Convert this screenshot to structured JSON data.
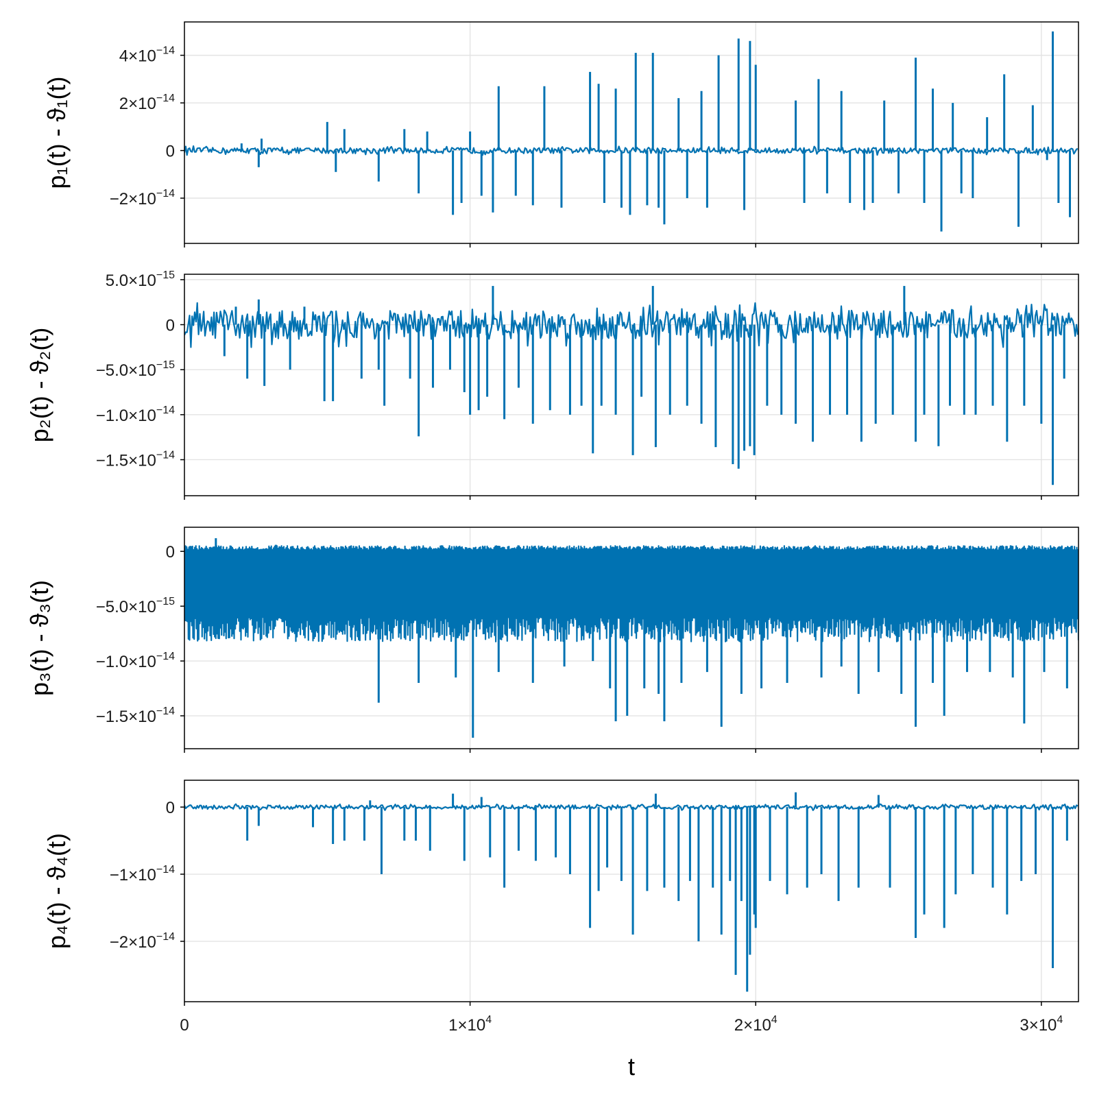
{
  "chart_data": [
    {
      "type": "line",
      "ylabel": "p₁(t) - ϑ₁(t)",
      "ylim": [
        -3.9e-14,
        5.4e-14
      ],
      "yticks": [
        {
          "value": 4e-14,
          "mant": "4×10",
          "exp": "−14"
        },
        {
          "value": 2e-14,
          "mant": "2×10",
          "exp": "−14"
        },
        {
          "value": 0,
          "mant": "0",
          "exp": ""
        },
        {
          "value": -2e-14,
          "mant": "−2×10",
          "exp": "−14"
        }
      ],
      "baseline_noise": 1.2e-15,
      "spikes": [
        {
          "t": 2000,
          "v": 3e-15
        },
        {
          "t": 2600,
          "v": -7e-15
        },
        {
          "t": 2700,
          "v": 5e-15
        },
        {
          "t": 5000,
          "v": 1.2e-14
        },
        {
          "t": 5300,
          "v": -9e-15
        },
        {
          "t": 5600,
          "v": 9e-15
        },
        {
          "t": 6800,
          "v": -1.3e-14
        },
        {
          "t": 7700,
          "v": 9e-15
        },
        {
          "t": 8200,
          "v": -1.8e-14
        },
        {
          "t": 8500,
          "v": 8e-15
        },
        {
          "t": 9400,
          "v": -2.7e-14
        },
        {
          "t": 9700,
          "v": -2.2e-14
        },
        {
          "t": 10000,
          "v": 8e-15
        },
        {
          "t": 10400,
          "v": -1.9e-14
        },
        {
          "t": 10800,
          "v": -2.6e-14
        },
        {
          "t": 11000,
          "v": 2.7e-14
        },
        {
          "t": 11600,
          "v": -1.9e-14
        },
        {
          "t": 12200,
          "v": -2.3e-14
        },
        {
          "t": 12600,
          "v": 2.7e-14
        },
        {
          "t": 13200,
          "v": -2.4e-14
        },
        {
          "t": 14200,
          "v": 3.3e-14
        },
        {
          "t": 14500,
          "v": 2.8e-14
        },
        {
          "t": 14700,
          "v": -2.2e-14
        },
        {
          "t": 15100,
          "v": 2.6e-14
        },
        {
          "t": 15300,
          "v": -2.4e-14
        },
        {
          "t": 15600,
          "v": -2.7e-14
        },
        {
          "t": 15800,
          "v": 4.1e-14
        },
        {
          "t": 16200,
          "v": -2.3e-14
        },
        {
          "t": 16400,
          "v": 4.1e-14
        },
        {
          "t": 16600,
          "v": -2.4e-14
        },
        {
          "t": 16800,
          "v": -3.1e-14
        },
        {
          "t": 17300,
          "v": 2.2e-14
        },
        {
          "t": 17600,
          "v": -2e-14
        },
        {
          "t": 18100,
          "v": 2.5e-14
        },
        {
          "t": 18300,
          "v": -2.4e-14
        },
        {
          "t": 18700,
          "v": 4e-14
        },
        {
          "t": 19400,
          "v": 4.7e-14
        },
        {
          "t": 19600,
          "v": -2.5e-14
        },
        {
          "t": 19800,
          "v": 4.6e-14
        },
        {
          "t": 20000,
          "v": 3.6e-14
        },
        {
          "t": 21400,
          "v": 2.1e-14
        },
        {
          "t": 21700,
          "v": -2.2e-14
        },
        {
          "t": 22200,
          "v": 3e-14
        },
        {
          "t": 22500,
          "v": -1.8e-14
        },
        {
          "t": 23000,
          "v": 2.5e-14
        },
        {
          "t": 23300,
          "v": -2.2e-14
        },
        {
          "t": 23800,
          "v": -2.5e-14
        },
        {
          "t": 24100,
          "v": -2.2e-14
        },
        {
          "t": 24500,
          "v": 2.1e-14
        },
        {
          "t": 25000,
          "v": -1.8e-14
        },
        {
          "t": 25600,
          "v": 3.9e-14
        },
        {
          "t": 25900,
          "v": -2.2e-14
        },
        {
          "t": 26200,
          "v": 2.6e-14
        },
        {
          "t": 26500,
          "v": -3.4e-14
        },
        {
          "t": 26900,
          "v": 2e-14
        },
        {
          "t": 27200,
          "v": -1.8e-14
        },
        {
          "t": 27600,
          "v": -2e-14
        },
        {
          "t": 28100,
          "v": 1.4e-14
        },
        {
          "t": 28700,
          "v": 3.2e-14
        },
        {
          "t": 29200,
          "v": -3.2e-14
        },
        {
          "t": 29700,
          "v": 1.9e-14
        },
        {
          "t": 30200,
          "v": -4e-15
        },
        {
          "t": 30400,
          "v": 5e-14
        },
        {
          "t": 30600,
          "v": -2.2e-14
        },
        {
          "t": 31000,
          "v": -2.8e-14
        }
      ]
    },
    {
      "type": "line",
      "ylabel": "p₂(t) - ϑ₂(t)",
      "ylim": [
        -1.9e-14,
        5.6e-15
      ],
      "yticks": [
        {
          "value": 5e-15,
          "mant": "5.0×10",
          "exp": "−15"
        },
        {
          "value": 0,
          "mant": "0",
          "exp": ""
        },
        {
          "value": -5e-15,
          "mant": "−5.0×10",
          "exp": "−15"
        },
        {
          "value": -1e-14,
          "mant": "−1.0×10",
          "exp": "−14"
        },
        {
          "value": -1.5e-14,
          "mant": "−1.5×10",
          "exp": "−14"
        }
      ],
      "baseline_noise": 1.6e-15,
      "spikes": [
        {
          "t": 1400,
          "v": -3.5e-15
        },
        {
          "t": 1800,
          "v": 2e-15
        },
        {
          "t": 2200,
          "v": -6e-15
        },
        {
          "t": 2600,
          "v": 2.8e-15
        },
        {
          "t": 2800,
          "v": -6.8e-15
        },
        {
          "t": 3700,
          "v": -5e-15
        },
        {
          "t": 4200,
          "v": 2e-15
        },
        {
          "t": 4900,
          "v": -8.5e-15
        },
        {
          "t": 5200,
          "v": -8.5e-15
        },
        {
          "t": 6200,
          "v": -6e-15
        },
        {
          "t": 6800,
          "v": -5e-15
        },
        {
          "t": 7000,
          "v": -9e-15
        },
        {
          "t": 7900,
          "v": -6e-15
        },
        {
          "t": 8200,
          "v": -1.24e-14
        },
        {
          "t": 8700,
          "v": -7e-15
        },
        {
          "t": 9300,
          "v": -5e-15
        },
        {
          "t": 9800,
          "v": -7.5e-15
        },
        {
          "t": 10000,
          "v": -1e-14
        },
        {
          "t": 10300,
          "v": -9.5e-15
        },
        {
          "t": 10600,
          "v": -8e-15
        },
        {
          "t": 10800,
          "v": 4.3e-15
        },
        {
          "t": 11200,
          "v": -1.05e-14
        },
        {
          "t": 11700,
          "v": -7e-15
        },
        {
          "t": 12200,
          "v": -1.1e-14
        },
        {
          "t": 12800,
          "v": -9.5e-15
        },
        {
          "t": 13500,
          "v": -1e-14
        },
        {
          "t": 13900,
          "v": -9e-15
        },
        {
          "t": 14300,
          "v": -1.43e-14
        },
        {
          "t": 14600,
          "v": -9e-15
        },
        {
          "t": 15100,
          "v": -1e-14
        },
        {
          "t": 15700,
          "v": -1.45e-14
        },
        {
          "t": 16000,
          "v": -8e-15
        },
        {
          "t": 16400,
          "v": 4.3e-15
        },
        {
          "t": 16500,
          "v": -1.36e-14
        },
        {
          "t": 17000,
          "v": -1e-14
        },
        {
          "t": 17600,
          "v": -9e-15
        },
        {
          "t": 18100,
          "v": -1.1e-14
        },
        {
          "t": 18600,
          "v": -1.36e-14
        },
        {
          "t": 19200,
          "v": -1.55e-14
        },
        {
          "t": 19400,
          "v": -1.6e-14
        },
        {
          "t": 19600,
          "v": -1.4e-14
        },
        {
          "t": 19800,
          "v": -1.35e-14
        },
        {
          "t": 19950,
          "v": -1.45e-14
        },
        {
          "t": 20400,
          "v": -9e-15
        },
        {
          "t": 20900,
          "v": -1e-14
        },
        {
          "t": 21400,
          "v": -1.1e-14
        },
        {
          "t": 22000,
          "v": -1.3e-14
        },
        {
          "t": 22600,
          "v": -1e-14
        },
        {
          "t": 23200,
          "v": -1e-14
        },
        {
          "t": 23700,
          "v": -1.3e-14
        },
        {
          "t": 24200,
          "v": -1.1e-14
        },
        {
          "t": 24800,
          "v": -1e-14
        },
        {
          "t": 25200,
          "v": 4.3e-15
        },
        {
          "t": 25600,
          "v": -1.3e-14
        },
        {
          "t": 25900,
          "v": -1e-14
        },
        {
          "t": 26400,
          "v": -1.35e-14
        },
        {
          "t": 26800,
          "v": -9e-15
        },
        {
          "t": 27300,
          "v": -1e-14
        },
        {
          "t": 27700,
          "v": -1e-14
        },
        {
          "t": 28300,
          "v": -9e-15
        },
        {
          "t": 28800,
          "v": -1.3e-14
        },
        {
          "t": 29400,
          "v": -9e-15
        },
        {
          "t": 30000,
          "v": -1.1e-14
        },
        {
          "t": 30400,
          "v": -1.78e-14
        },
        {
          "t": 30800,
          "v": -6e-15
        }
      ]
    },
    {
      "type": "line",
      "ylabel": "p₃(t) - ϑ₃(t)",
      "ylim": [
        -1.8e-14,
        2.2e-15
      ],
      "yticks": [
        {
          "value": 0,
          "mant": "0",
          "exp": ""
        },
        {
          "value": -5e-15,
          "mant": "−5.0×10",
          "exp": "−15"
        },
        {
          "value": -1e-14,
          "mant": "−1.0×10",
          "exp": "−14"
        },
        {
          "value": -1.5e-14,
          "mant": "−1.5×10",
          "exp": "−14"
        }
      ],
      "dense_band": {
        "top": 5e-16,
        "bottom": -8e-15,
        "step": 40
      },
      "spikes": [
        {
          "t": 1100,
          "v": 1.2e-15
        },
        {
          "t": 3200,
          "v": 6e-16
        },
        {
          "t": 6800,
          "v": -1.38e-14
        },
        {
          "t": 8200,
          "v": -1.2e-14
        },
        {
          "t": 9500,
          "v": -1.15e-14
        },
        {
          "t": 10100,
          "v": -1.7e-14
        },
        {
          "t": 11000,
          "v": -1.1e-14
        },
        {
          "t": 12200,
          "v": -1.2e-14
        },
        {
          "t": 13300,
          "v": -1.05e-14
        },
        {
          "t": 14300,
          "v": -1e-14
        },
        {
          "t": 14900,
          "v": -1.25e-14
        },
        {
          "t": 15100,
          "v": -1.55e-14
        },
        {
          "t": 15500,
          "v": -1.5e-14
        },
        {
          "t": 16100,
          "v": -1.25e-14
        },
        {
          "t": 16600,
          "v": -1.3e-14
        },
        {
          "t": 16800,
          "v": -1.55e-14
        },
        {
          "t": 17400,
          "v": -1.2e-14
        },
        {
          "t": 18300,
          "v": -1.1e-14
        },
        {
          "t": 18800,
          "v": -1.6e-14
        },
        {
          "t": 19500,
          "v": -1.3e-14
        },
        {
          "t": 20200,
          "v": -1.25e-14
        },
        {
          "t": 21100,
          "v": -1.2e-14
        },
        {
          "t": 22300,
          "v": -1.15e-14
        },
        {
          "t": 23000,
          "v": -1.05e-14
        },
        {
          "t": 23600,
          "v": -1.3e-14
        },
        {
          "t": 24300,
          "v": -1.1e-14
        },
        {
          "t": 25100,
          "v": -1.3e-14
        },
        {
          "t": 25600,
          "v": -1.6e-14
        },
        {
          "t": 26200,
          "v": -1.2e-14
        },
        {
          "t": 26600,
          "v": -1.5e-14
        },
        {
          "t": 27400,
          "v": -1.1e-14
        },
        {
          "t": 28200,
          "v": -1.1e-14
        },
        {
          "t": 29000,
          "v": -1.15e-14
        },
        {
          "t": 29400,
          "v": -1.57e-14
        },
        {
          "t": 30100,
          "v": -1.1e-14
        },
        {
          "t": 30900,
          "v": -1.25e-14
        }
      ]
    },
    {
      "type": "line",
      "ylabel": "p₄(t) - ϑ₄(t)",
      "ylim": [
        -2.9e-14,
        4e-15
      ],
      "yticks": [
        {
          "value": 0,
          "mant": "0",
          "exp": ""
        },
        {
          "value": -1e-14,
          "mant": "−1×10",
          "exp": "−14"
        },
        {
          "value": -2e-14,
          "mant": "−2×10",
          "exp": "−14"
        }
      ],
      "baseline_noise": 3e-16,
      "spikes": [
        {
          "t": 2200,
          "v": -5e-15
        },
        {
          "t": 2600,
          "v": -2.8e-15
        },
        {
          "t": 4500,
          "v": -3e-15
        },
        {
          "t": 5200,
          "v": -5.5e-15
        },
        {
          "t": 5600,
          "v": -5e-15
        },
        {
          "t": 6300,
          "v": -5e-15
        },
        {
          "t": 6500,
          "v": 1e-15
        },
        {
          "t": 6900,
          "v": -1e-14
        },
        {
          "t": 7700,
          "v": -5e-15
        },
        {
          "t": 8100,
          "v": -5e-15
        },
        {
          "t": 8600,
          "v": -6.5e-15
        },
        {
          "t": 9400,
          "v": 2e-15
        },
        {
          "t": 9800,
          "v": -8e-15
        },
        {
          "t": 10400,
          "v": 1.5e-15
        },
        {
          "t": 10700,
          "v": -7.5e-15
        },
        {
          "t": 11200,
          "v": -1.2e-14
        },
        {
          "t": 11700,
          "v": -6.5e-15
        },
        {
          "t": 12300,
          "v": -8e-15
        },
        {
          "t": 13000,
          "v": -7.5e-15
        },
        {
          "t": 13500,
          "v": -1e-14
        },
        {
          "t": 14200,
          "v": -1.8e-14
        },
        {
          "t": 14500,
          "v": -1.25e-14
        },
        {
          "t": 14800,
          "v": -9e-15
        },
        {
          "t": 15300,
          "v": -1.1e-14
        },
        {
          "t": 15700,
          "v": -1.9e-14
        },
        {
          "t": 16200,
          "v": -1.25e-14
        },
        {
          "t": 16500,
          "v": 2e-15
        },
        {
          "t": 16800,
          "v": -1.2e-14
        },
        {
          "t": 17300,
          "v": -1.4e-14
        },
        {
          "t": 17700,
          "v": -1.1e-14
        },
        {
          "t": 18000,
          "v": -2e-14
        },
        {
          "t": 18500,
          "v": -1.2e-14
        },
        {
          "t": 18800,
          "v": -1.9e-14
        },
        {
          "t": 19100,
          "v": -1.1e-14
        },
        {
          "t": 19300,
          "v": -2.5e-14
        },
        {
          "t": 19500,
          "v": -1.4e-14
        },
        {
          "t": 19700,
          "v": -2.75e-14
        },
        {
          "t": 19800,
          "v": -2.2e-14
        },
        {
          "t": 19950,
          "v": -1.6e-14
        },
        {
          "t": 20000,
          "v": -1.8e-14
        },
        {
          "t": 20500,
          "v": -1.1e-14
        },
        {
          "t": 21100,
          "v": -1.3e-14
        },
        {
          "t": 21400,
          "v": 2.2e-15
        },
        {
          "t": 21800,
          "v": -1.2e-14
        },
        {
          "t": 22300,
          "v": -1e-14
        },
        {
          "t": 22900,
          "v": -1.4e-14
        },
        {
          "t": 23600,
          "v": -1.2e-14
        },
        {
          "t": 24300,
          "v": 1.8e-15
        },
        {
          "t": 24700,
          "v": -1.2e-14
        },
        {
          "t": 25600,
          "v": -1.95e-14
        },
        {
          "t": 25900,
          "v": -1.6e-14
        },
        {
          "t": 26600,
          "v": -1.8e-14
        },
        {
          "t": 27000,
          "v": -1.3e-14
        },
        {
          "t": 27600,
          "v": -1e-14
        },
        {
          "t": 28300,
          "v": -1.2e-14
        },
        {
          "t": 28800,
          "v": -1.6e-14
        },
        {
          "t": 29300,
          "v": -1.1e-14
        },
        {
          "t": 29800,
          "v": -1e-14
        },
        {
          "t": 30400,
          "v": -2.4e-14
        },
        {
          "t": 30900,
          "v": -5e-15
        }
      ]
    }
  ],
  "x_axis": {
    "xlabel": "t",
    "xlim": [
      0,
      31300
    ],
    "xticks": [
      {
        "value": 0,
        "mant": "0",
        "exp": ""
      },
      {
        "value": 10000,
        "mant": "1×10",
        "exp": "4"
      },
      {
        "value": 20000,
        "mant": "2×10",
        "exp": "4"
      },
      {
        "value": 30000,
        "mant": "3×10",
        "exp": "4"
      }
    ]
  },
  "colors": {
    "series": "#0072b2",
    "grid": "#e3e3e3",
    "frame": "#000000"
  },
  "grid": true
}
